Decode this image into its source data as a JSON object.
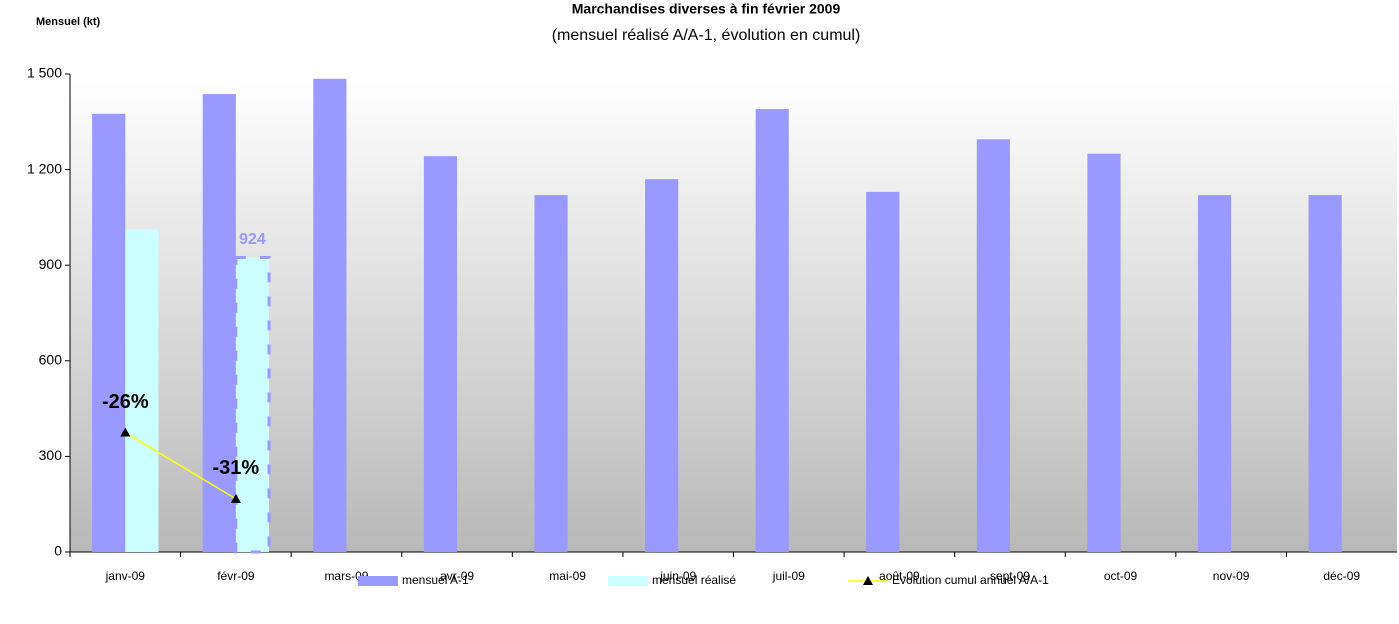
{
  "chart_data": {
    "type": "bar",
    "title": "Marchandises diverses à fin février 2009",
    "subtitle": "(mensuel réalisé A/A-1, évolution en cumul)",
    "y_label": "Mensuel (kt)",
    "categories": [
      "janv-09",
      "févr-09",
      "mars-09",
      "avr-09",
      "mai-09",
      "juin-09",
      "juil-09",
      "août-09",
      "sept-09",
      "oct-09",
      "nov-09",
      "déc-09"
    ],
    "series": [
      {
        "name": "mensuel A-1",
        "type": "bar",
        "color": "#9999ff",
        "values": [
          1375,
          1437,
          1485,
          1242,
          1120,
          1170,
          1390,
          1130,
          1295,
          1250,
          1120,
          1120
        ]
      },
      {
        "name": "mensuel réalisé",
        "type": "bar",
        "color": "#ccffff",
        "values": [
          1012,
          924,
          null,
          null,
          null,
          null,
          null,
          null,
          null,
          null,
          null,
          null
        ],
        "value_labels": [
          null,
          "924",
          null,
          null,
          null,
          null,
          null,
          null,
          null,
          null,
          null,
          null
        ]
      },
      {
        "name": "Evolution cumul annuel A/A-1",
        "type": "line",
        "axis": "y2",
        "color": "#ffff00",
        "values": [
          -26,
          -31,
          null,
          null,
          null,
          null,
          null,
          null,
          null,
          null,
          null,
          null
        ],
        "value_labels": [
          "-26%",
          "-31%",
          null,
          null,
          null,
          null,
          null,
          null,
          null,
          null,
          null,
          null
        ]
      }
    ],
    "ylim": [
      0,
      1500
    ],
    "yticks": [
      0,
      300,
      600,
      900,
      {
        "value": 1200,
        "label": "1 200"
      },
      {
        "value": 1500,
        "label": "1 500"
      }
    ],
    "y2lim": [
      -35,
      1
    ],
    "legend": "bottom"
  }
}
